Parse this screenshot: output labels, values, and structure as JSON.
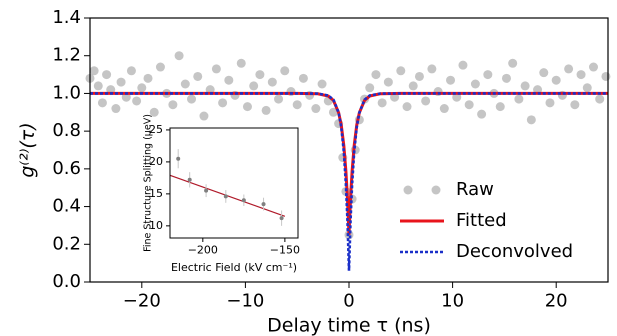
{
  "chart_data": [
    {
      "type": "line",
      "xlabel": "Delay time τ (ns)",
      "ylabel": "g⁽²⁾(τ)",
      "xlim": [
        -25,
        25
      ],
      "ylim": [
        0,
        1.4
      ],
      "xticks": [
        {
          "value": -20,
          "label": "−20"
        },
        {
          "value": -10,
          "label": "−10"
        },
        0,
        10,
        20
      ],
      "yticks": [
        {
          "value": 0,
          "label": "0.0"
        },
        0.2,
        0.4,
        0.6,
        0.8,
        {
          "value": 1,
          "label": "1.0"
        },
        1.2,
        1.4
      ],
      "legend": "lower right",
      "series": [
        {
          "name": "Raw",
          "color": "#a6a6a6",
          "style": "scatter",
          "x": [
            -25,
            -24.6,
            -24.2,
            -23.8,
            -23.4,
            -23,
            -22.5,
            -22,
            -21.5,
            -21,
            -20.5,
            -20,
            -19.4,
            -18.8,
            -18.2,
            -17.6,
            -17,
            -16.4,
            -15.8,
            -15.2,
            -14.6,
            -14,
            -13.4,
            -12.8,
            -12.2,
            -11.6,
            -11,
            -10.4,
            -9.8,
            -9.2,
            -8.6,
            -8,
            -7.4,
            -6.8,
            -6.2,
            -5.6,
            -5,
            -4.4,
            -3.8,
            -3.2,
            -2.6,
            -2,
            -1.5,
            -1,
            -0.6,
            -0.3,
            0,
            0.3,
            0.6,
            1,
            1.5,
            2,
            2.6,
            3.2,
            3.8,
            4.4,
            5,
            5.6,
            6.2,
            6.8,
            7.4,
            8,
            8.6,
            9.2,
            9.8,
            10.4,
            11,
            11.6,
            12.2,
            12.8,
            13.4,
            14,
            14.6,
            15.2,
            15.8,
            16.4,
            17,
            17.6,
            18.2,
            18.8,
            19.4,
            20,
            20.6,
            21.2,
            21.8,
            22.4,
            23,
            23.6,
            24.2,
            24.8
          ],
          "values": [
            1.08,
            1.12,
            1.04,
            0.95,
            1.1,
            1.02,
            0.92,
            1.06,
            0.98,
            1.12,
            0.96,
            1.03,
            1.08,
            0.9,
            1.14,
            1.0,
            0.94,
            1.2,
            1.05,
            0.97,
            1.09,
            0.88,
            1.02,
            1.13,
            0.95,
            1.07,
            0.99,
            1.16,
            0.93,
            1.04,
            1.1,
            0.91,
            1.06,
            0.97,
            1.12,
            1.01,
            0.94,
            1.08,
            0.99,
            0.92,
            1.05,
            0.96,
            0.9,
            0.84,
            0.66,
            0.48,
            0.25,
            0.44,
            0.7,
            0.86,
            0.97,
            1.03,
            1.1,
            0.95,
            1.06,
            0.98,
            1.12,
            0.93,
            1.04,
            1.09,
            0.96,
            1.13,
            1.01,
            0.92,
            1.07,
            0.98,
            1.15,
            0.94,
            1.05,
            0.89,
            1.1,
            1.0,
            0.93,
            1.08,
            1.16,
            0.97,
            1.04,
            0.86,
            1.02,
            1.11,
            0.95,
            1.07,
            0.99,
            1.13,
            0.94,
            1.1,
            1.03,
            1.14,
            0.97,
            1.09
          ]
        },
        {
          "name": "Fitted",
          "color": "#e8141c",
          "style": "line",
          "x": [
            -25,
            -5,
            -3,
            -2,
            -1.5,
            -1,
            -0.75,
            -0.5,
            -0.3,
            -0.15,
            0,
            0.15,
            0.3,
            0.5,
            0.75,
            1,
            1.5,
            2,
            3,
            5,
            25
          ],
          "values": [
            1,
            1,
            0.998,
            0.986,
            0.963,
            0.898,
            0.833,
            0.724,
            0.588,
            0.444,
            0.25,
            0.444,
            0.588,
            0.724,
            0.833,
            0.898,
            0.963,
            0.986,
            0.998,
            1,
            1
          ]
        },
        {
          "name": "Deconvolved",
          "color": "#1a2fc8",
          "style": "dotted",
          "x": [
            -25,
            -5,
            -3,
            -2,
            -1.5,
            -1,
            -0.75,
            -0.5,
            -0.3,
            -0.15,
            0,
            0.15,
            0.3,
            0.5,
            0.75,
            1,
            1.5,
            2,
            3,
            5,
            25
          ],
          "values": [
            1,
            1,
            0.999,
            0.989,
            0.967,
            0.898,
            0.822,
            0.69,
            0.517,
            0.327,
            0.06,
            0.327,
            0.517,
            0.69,
            0.822,
            0.898,
            0.967,
            0.989,
            0.999,
            1,
            1
          ]
        }
      ]
    },
    {
      "type": "scatter",
      "xlabel": "Electric Field (kV cm⁻¹)",
      "ylabel": "Fine Structure Splitting (μeV)",
      "xlim": [
        -220,
        -142
      ],
      "ylim": [
        8.1,
        25.3
      ],
      "xticks": [
        {
          "value": -200,
          "label": "−200"
        },
        {
          "value": -150,
          "label": "−150"
        }
      ],
      "yticks": [
        10,
        15,
        20,
        25
      ],
      "color": "#808080",
      "error_color": "#c8c8c8",
      "x": [
        -215,
        -208,
        -198,
        -186,
        -175,
        -163,
        -152
      ],
      "values": [
        20.5,
        17.2,
        15.5,
        14.6,
        14.0,
        13.4,
        11.2
      ],
      "errors": [
        1.5,
        1.2,
        1.0,
        1.0,
        0.9,
        1.0,
        1.2
      ],
      "fit": {
        "color": "#b01a2a",
        "x": [
          -220,
          -150
        ],
        "values": [
          17.9,
          11.5
        ]
      }
    }
  ]
}
